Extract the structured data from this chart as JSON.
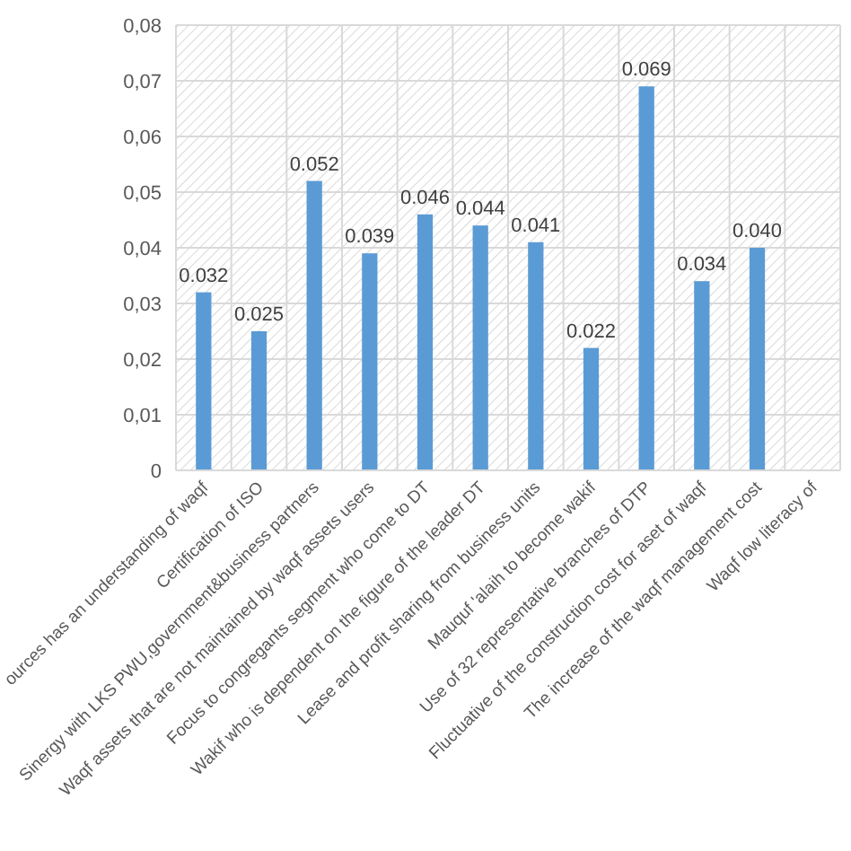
{
  "chart_data": {
    "type": "bar",
    "categories": [
      "ources has an understanding of waqf",
      "Certification of ISO",
      "Sinergy with LKS PWU,government&business partners",
      "Waqf assets that are not maintained by waqf assets users",
      "Focus to congregants segment who come to DT",
      "Wakif who is dependent on the figure of the leader DT",
      "Lease and profit sharing from business units",
      "Mauquf 'alaih to become wakif",
      "Use of 32 representative branches of DTP",
      "Fluctuative of the construction cost for aset of waqf",
      "The increase of the waqf management cost",
      "Waqf low literacy of"
    ],
    "values": [
      0.032,
      0.025,
      0.052,
      0.039,
      0.046,
      0.044,
      0.041,
      0.022,
      0.069,
      0.034,
      0.04,
      null
    ],
    "value_labels": [
      "0.032",
      "0.025",
      "0.052",
      "0.039",
      "0.046",
      "0.044",
      "0.041",
      "0.022",
      "0.069",
      "0.034",
      "0.040",
      null
    ],
    "color": "#5b9bd5",
    "ylim": [
      0,
      0.08
    ],
    "yticks": [
      {
        "value": 0,
        "label": "0"
      },
      {
        "value": 0.01,
        "label": "0,01"
      },
      {
        "value": 0.02,
        "label": "0,02"
      },
      {
        "value": 0.03,
        "label": "0,03"
      },
      {
        "value": 0.04,
        "label": "0,04"
      },
      {
        "value": 0.05,
        "label": "0,05"
      },
      {
        "value": 0.06,
        "label": "0,06"
      },
      {
        "value": 0.07,
        "label": "0,07"
      },
      {
        "value": 0.08,
        "label": "0,08"
      }
    ],
    "grid": true
  }
}
